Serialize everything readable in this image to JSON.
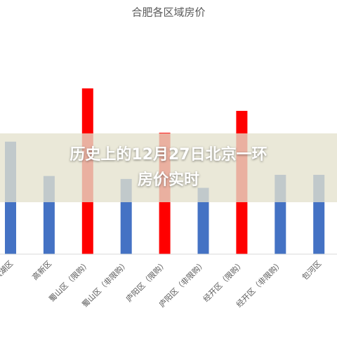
{
  "banner": {
    "lines": [
      "历史上的12月27日北京一环",
      "房价实时"
    ]
  },
  "chart_data": {
    "type": "bar",
    "title": "合肥各区域房价",
    "categories": [
      "滨湖区",
      "高新区",
      "蜀山区（限购）",
      "蜀山区（非限购）",
      "庐阳区（限购）",
      "庐阳区（非限购）",
      "经开区（限购）",
      "经开区（非限购）",
      "包河区"
    ],
    "values": [
      190,
      132,
      280,
      127,
      205,
      112,
      242,
      134,
      134
    ],
    "colors": [
      "#4472c4",
      "#4472c4",
      "#ff0000",
      "#4472c4",
      "#ff0000",
      "#4472c4",
      "#ff0000",
      "#4472c4",
      "#4472c4"
    ],
    "ylim": [
      0,
      300
    ]
  }
}
